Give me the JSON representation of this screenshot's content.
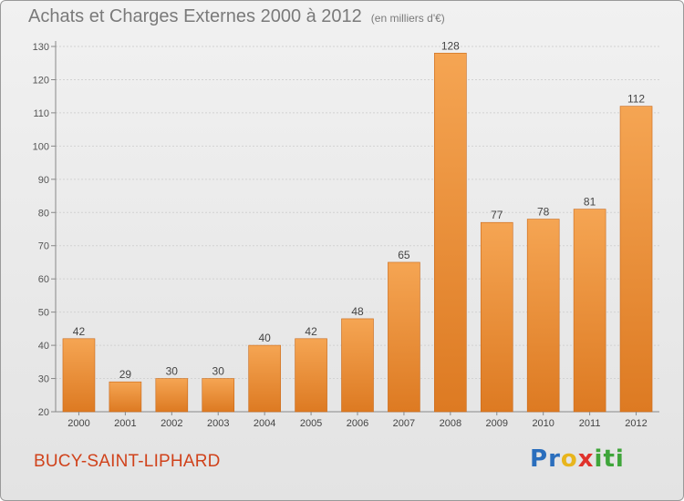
{
  "header": {
    "title": "Achats et Charges Externes 2000 à 2012",
    "subtitle": "(en milliers d'€)"
  },
  "commune": "BUCY-SAINT-LIPHARD",
  "logo": "Proxiti",
  "colors": {
    "bar_light": "#f5a553",
    "bar_dark": "#dd7a22",
    "title": "#7a7a7a",
    "commune": "#d0421b"
  },
  "chart_data": {
    "type": "bar",
    "title": "Achats et Charges Externes 2000 à 2012",
    "subtitle": "(en milliers d'€)",
    "categories": [
      "2000",
      "2001",
      "2002",
      "2003",
      "2004",
      "2005",
      "2006",
      "2007",
      "2008",
      "2009",
      "2010",
      "2011",
      "2012"
    ],
    "values": [
      42,
      29,
      30,
      30,
      40,
      42,
      48,
      65,
      128,
      77,
      78,
      81,
      112
    ],
    "xlabel": "",
    "ylabel": "",
    "ylim": [
      20,
      130
    ],
    "yticks": [
      20,
      30,
      40,
      50,
      60,
      70,
      80,
      90,
      100,
      110,
      120,
      130
    ],
    "grid": true,
    "data_labels": true
  }
}
